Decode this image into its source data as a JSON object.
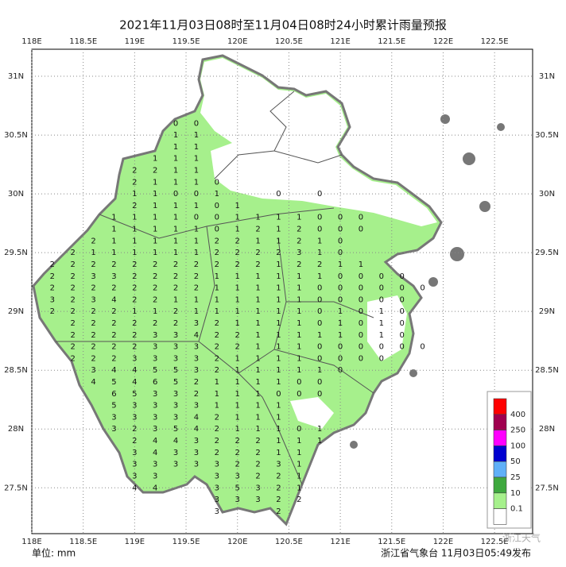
{
  "title": "2021年11月03日08时至11月04日08时24小时累计雨量预报",
  "unit_label": "单位: mm",
  "source": "浙江省气象台 11月03日05:49发布",
  "watermark": "浙江天气",
  "xlim": [
    118,
    122.87
  ],
  "ylim": [
    27.11,
    31.23
  ],
  "xticks": [
    {
      "value": 118,
      "label": "118E"
    },
    {
      "value": 118.5,
      "label": "118.5E"
    },
    {
      "value": 119,
      "label": "119E"
    },
    {
      "value": 119.5,
      "label": "119.5E"
    },
    {
      "value": 120,
      "label": "120E"
    },
    {
      "value": 120.5,
      "label": "120.5E"
    },
    {
      "value": 121,
      "label": "121E"
    },
    {
      "value": 121.5,
      "label": "121.5E"
    },
    {
      "value": 122,
      "label": "122E"
    },
    {
      "value": 122.5,
      "label": "122.5E"
    }
  ],
  "yticks": [
    {
      "value": 27.5,
      "label": "27.5N"
    },
    {
      "value": 28,
      "label": "28N"
    },
    {
      "value": 28.5,
      "label": "28.5N"
    },
    {
      "value": 29,
      "label": "29N"
    },
    {
      "value": 29.5,
      "label": "29.5N"
    },
    {
      "value": 30,
      "label": "30N"
    },
    {
      "value": 30.5,
      "label": "30.5N"
    },
    {
      "value": 31,
      "label": "31N"
    }
  ],
  "grid": true,
  "legend": {
    "thresholds": [
      400,
      250,
      100,
      50,
      25,
      10,
      0.1
    ],
    "colors": [
      "#ff0000",
      "#a0004f",
      "#ff00ff",
      "#0000d0",
      "#60b0f8",
      "#3ea83e",
      "#a6f08c",
      "#ffffff"
    ]
  },
  "rain_color": "#a6f08c",
  "grid_values": {
    "lon": [
      118.2,
      118.4,
      118.6,
      118.8,
      119,
      119.2,
      119.4,
      119.6,
      119.8,
      120,
      120.2,
      120.4,
      120.6,
      120.8,
      121,
      121.2,
      121.4,
      121.6,
      121.8
    ],
    "lat": [
      30.6,
      30.5,
      30.4,
      30.3,
      30.2,
      30.1,
      30,
      29.9,
      29.8,
      29.7,
      29.6,
      29.5,
      29.4,
      29.3,
      29.2,
      29.1,
      29,
      28.9,
      28.8,
      28.7,
      28.6,
      28.5,
      28.4,
      28.3,
      28.2,
      28.1,
      28,
      27.9,
      27.8,
      27.7,
      27.6,
      27.5,
      27.4,
      27.3
    ],
    "values": [
      [
        null,
        null,
        null,
        null,
        null,
        null,
        0,
        0,
        null,
        null,
        null,
        null,
        null,
        null,
        null,
        null,
        null,
        null,
        null
      ],
      [
        null,
        null,
        null,
        null,
        null,
        null,
        1,
        1,
        null,
        null,
        null,
        null,
        null,
        null,
        null,
        null,
        null,
        null,
        null
      ],
      [
        null,
        null,
        null,
        null,
        null,
        null,
        1,
        1,
        null,
        null,
        null,
        null,
        null,
        null,
        null,
        null,
        null,
        null,
        null
      ],
      [
        null,
        null,
        null,
        null,
        null,
        1,
        1,
        1,
        null,
        null,
        null,
        null,
        null,
        null,
        null,
        null,
        null,
        null,
        null
      ],
      [
        null,
        null,
        null,
        null,
        2,
        2,
        1,
        1,
        null,
        null,
        null,
        null,
        null,
        null,
        null,
        null,
        null,
        null,
        null
      ],
      [
        null,
        null,
        null,
        null,
        2,
        1,
        1,
        1,
        0,
        null,
        null,
        null,
        null,
        null,
        null,
        null,
        null,
        null,
        null
      ],
      [
        null,
        null,
        null,
        null,
        1,
        1,
        0,
        0,
        1,
        null,
        null,
        0,
        null,
        0,
        null,
        null,
        null,
        null,
        null
      ],
      [
        null,
        null,
        null,
        null,
        2,
        1,
        1,
        1,
        0,
        1,
        null,
        null,
        null,
        null,
        null,
        null,
        null,
        null,
        null
      ],
      [
        null,
        null,
        null,
        1,
        1,
        1,
        1,
        0,
        0,
        1,
        1,
        1,
        1,
        0,
        0,
        0,
        null,
        null,
        null
      ],
      [
        null,
        null,
        null,
        1,
        1,
        1,
        1,
        1,
        0,
        1,
        2,
        1,
        2,
        0,
        0,
        0,
        null,
        null,
        null
      ],
      [
        null,
        null,
        2,
        1,
        1,
        1,
        1,
        1,
        2,
        2,
        1,
        1,
        2,
        1,
        0,
        null,
        null,
        null,
        null
      ],
      [
        null,
        2,
        1,
        1,
        1,
        1,
        1,
        1,
        2,
        2,
        2,
        2,
        3,
        1,
        0,
        null,
        null,
        null,
        null
      ],
      [
        2,
        2,
        2,
        2,
        2,
        2,
        2,
        2,
        2,
        2,
        2,
        1,
        2,
        2,
        1,
        1,
        null,
        null,
        null
      ],
      [
        2,
        2,
        3,
        3,
        2,
        2,
        2,
        2,
        1,
        1,
        1,
        1,
        1,
        1,
        0,
        0,
        0,
        0,
        null
      ],
      [
        2,
        2,
        2,
        2,
        2,
        2,
        2,
        2,
        1,
        1,
        1,
        1,
        1,
        0,
        0,
        0,
        0,
        0,
        0
      ],
      [
        3,
        2,
        3,
        4,
        2,
        2,
        1,
        1,
        1,
        1,
        1,
        1,
        1,
        0,
        0,
        0,
        0,
        0,
        null
      ],
      [
        2,
        2,
        2,
        2,
        1,
        1,
        2,
        1,
        1,
        1,
        1,
        1,
        1,
        0,
        1,
        0,
        1,
        0,
        null
      ],
      [
        null,
        2,
        2,
        2,
        2,
        2,
        2,
        3,
        2,
        1,
        1,
        1,
        1,
        0,
        1,
        0,
        1,
        0,
        null
      ],
      [
        null,
        2,
        2,
        2,
        2,
        3,
        3,
        4,
        2,
        2,
        1,
        1,
        1,
        1,
        1,
        0,
        1,
        0,
        null
      ],
      [
        null,
        2,
        2,
        2,
        2,
        3,
        3,
        3,
        2,
        2,
        1,
        1,
        1,
        0,
        0,
        0,
        0,
        0,
        0
      ],
      [
        null,
        2,
        2,
        2,
        3,
        3,
        3,
        3,
        2,
        1,
        1,
        1,
        1,
        0,
        0,
        0,
        0,
        null,
        null
      ],
      [
        null,
        null,
        3,
        4,
        4,
        5,
        5,
        3,
        2,
        1,
        1,
        1,
        1,
        1,
        0,
        null,
        null,
        null,
        null
      ],
      [
        null,
        null,
        4,
        5,
        4,
        6,
        5,
        2,
        1,
        1,
        1,
        1,
        0,
        0,
        null,
        null,
        null,
        null,
        null
      ],
      [
        null,
        null,
        null,
        6,
        5,
        3,
        3,
        2,
        1,
        1,
        1,
        0,
        0,
        0,
        null,
        null,
        null,
        null,
        null
      ],
      [
        null,
        null,
        null,
        5,
        3,
        3,
        3,
        3,
        1,
        1,
        1,
        1,
        null,
        null,
        null,
        null,
        null,
        null,
        null
      ],
      [
        null,
        null,
        null,
        3,
        3,
        3,
        3,
        4,
        2,
        1,
        1,
        1,
        null,
        null,
        null,
        null,
        null,
        null,
        null
      ],
      [
        null,
        null,
        null,
        3,
        2,
        3,
        5,
        4,
        2,
        1,
        1,
        1,
        0,
        1,
        null,
        null,
        null,
        null,
        null
      ],
      [
        null,
        null,
        null,
        null,
        2,
        4,
        4,
        3,
        2,
        2,
        2,
        1,
        1,
        1,
        null,
        null,
        null,
        null,
        null
      ],
      [
        null,
        null,
        null,
        null,
        3,
        4,
        3,
        3,
        2,
        2,
        2,
        1,
        1,
        null,
        null,
        null,
        null,
        null,
        null
      ],
      [
        null,
        null,
        null,
        null,
        3,
        3,
        3,
        3,
        3,
        2,
        2,
        3,
        1,
        null,
        null,
        null,
        null,
        null,
        null
      ],
      [
        null,
        null,
        null,
        null,
        3,
        3,
        null,
        null,
        3,
        3,
        2,
        2,
        1,
        null,
        null,
        null,
        null,
        null,
        null
      ],
      [
        null,
        null,
        null,
        null,
        4,
        4,
        null,
        null,
        3,
        5,
        3,
        2,
        1,
        null,
        null,
        null,
        null,
        null,
        null
      ],
      [
        null,
        null,
        null,
        null,
        null,
        null,
        null,
        null,
        3,
        3,
        3,
        2,
        2,
        null,
        null,
        null,
        null,
        null,
        null
      ],
      [
        null,
        null,
        null,
        null,
        null,
        null,
        null,
        null,
        3,
        null,
        null,
        2,
        null,
        null,
        null,
        null,
        null,
        null,
        null
      ]
    ]
  }
}
